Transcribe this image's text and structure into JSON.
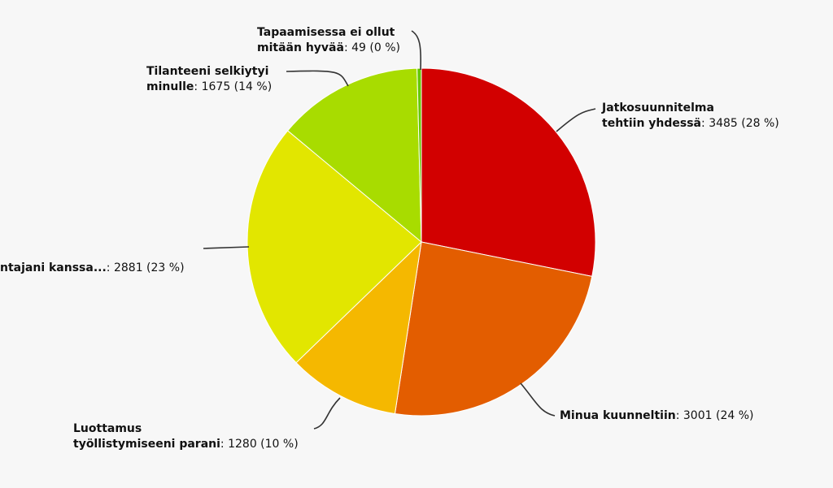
{
  "chart_data": {
    "type": "pie",
    "slices": [
      {
        "name_lines": [
          "Jatkosuunnitelma",
          "tehtiin yhdessä"
        ],
        "value": 3485,
        "percent": "28 %",
        "color": "#d20000"
      },
      {
        "name_lines": [
          "Minua kuunneltiin"
        ],
        "value": 3001,
        "percent": "24 %",
        "color": "#e35d00"
      },
      {
        "name_lines": [
          "Luottamus",
          "työllistymiseeni parani"
        ],
        "value": 1280,
        "percent": "10 %",
        "color": "#f5b800"
      },
      {
        "name_lines": [
          "ntajani kanssa..."
        ],
        "value": 2881,
        "percent": "23 %",
        "color": "#e2e600"
      },
      {
        "name_lines": [
          "Tilanteeni selkiytyi",
          "minulle"
        ],
        "value": 1675,
        "percent": "14 %",
        "color": "#a8dc00"
      },
      {
        "name_lines": [
          "Tapaamisessa ei ollut",
          "mitään hyvää"
        ],
        "value": 49,
        "percent": "0 %",
        "color": "#64c800"
      }
    ]
  }
}
